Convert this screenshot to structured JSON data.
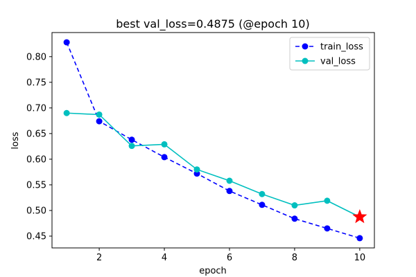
{
  "chart_data": {
    "type": "line",
    "title": "best val_loss=0.4875 (@epoch 10)",
    "xlabel": "epoch",
    "ylabel": "loss",
    "xlim": [
      0.55,
      10.45
    ],
    "ylim": [
      0.427,
      0.847
    ],
    "xticks": [
      2,
      4,
      6,
      8,
      10
    ],
    "yticks": [
      0.45,
      0.5,
      0.55,
      0.6,
      0.65,
      0.7,
      0.75,
      0.8
    ],
    "x": [
      1,
      2,
      3,
      4,
      5,
      6,
      7,
      8,
      9,
      10
    ],
    "series": [
      {
        "name": "train_loss",
        "values": [
          0.828,
          0.674,
          0.638,
          0.604,
          0.572,
          0.538,
          0.511,
          0.484,
          0.465,
          0.446
        ],
        "color": "#0000ff",
        "line_style": "dashed",
        "marker": "circle"
      },
      {
        "name": "val_loss",
        "values": [
          0.69,
          0.687,
          0.626,
          0.629,
          0.58,
          0.558,
          0.532,
          0.51,
          0.519,
          0.4875
        ],
        "color": "#00bfbf",
        "line_style": "solid",
        "marker": "circle"
      }
    ],
    "best_marker": {
      "x": 10,
      "y": 0.4875,
      "marker": "star",
      "color": "#ff0000"
    },
    "grid": false,
    "legend_position": "top-right"
  }
}
